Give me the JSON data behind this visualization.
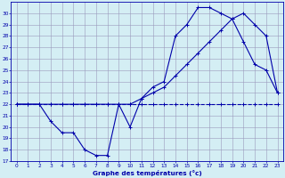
{
  "title": "Graphe des températures (°c)",
  "bg_color": "#d4eef4",
  "grid_color": "#9999bb",
  "line_color": "#0000aa",
  "xlim": [
    -0.5,
    23.5
  ],
  "ylim": [
    17,
    31
  ],
  "xticks": [
    0,
    1,
    2,
    3,
    4,
    5,
    6,
    7,
    8,
    9,
    10,
    11,
    12,
    13,
    14,
    15,
    16,
    17,
    18,
    19,
    20,
    21,
    22,
    23
  ],
  "yticks": [
    17,
    18,
    19,
    20,
    21,
    22,
    23,
    24,
    25,
    26,
    27,
    28,
    29,
    30
  ],
  "curve1_x": [
    0,
    1,
    2,
    3,
    4,
    5,
    6,
    7,
    8,
    9,
    10,
    11,
    12,
    13,
    14,
    15,
    16,
    17,
    18,
    19,
    20,
    21,
    22,
    23
  ],
  "curve1_y": [
    22,
    22,
    22,
    20.5,
    19.5,
    19.5,
    18,
    17.5,
    17.5,
    22,
    20,
    22.5,
    23.5,
    24,
    28,
    29,
    30.5,
    30.5,
    30,
    29.5,
    27.5,
    25.5,
    25,
    23
  ],
  "curve2_x": [
    0,
    2,
    3,
    4,
    5,
    6,
    7,
    8,
    9,
    10,
    11,
    12,
    13,
    14,
    15,
    16,
    17,
    18,
    19,
    20,
    21,
    22,
    23
  ],
  "curve2_y": [
    22,
    22,
    22,
    22,
    22,
    22,
    22,
    22,
    22,
    22,
    22.5,
    23,
    23.5,
    24.5,
    25.5,
    26.5,
    27.5,
    28.5,
    29.5,
    30,
    29,
    28,
    23
  ],
  "curve3_x": [
    0,
    1,
    2,
    3,
    4,
    5,
    6,
    7,
    8,
    9,
    10,
    11,
    12,
    13,
    14,
    15,
    16,
    17,
    18,
    19,
    20,
    21,
    22,
    23
  ],
  "curve3_y": [
    22,
    22,
    22,
    22,
    22,
    22,
    22,
    22,
    22,
    22,
    22,
    22,
    22,
    22,
    22,
    22,
    22,
    22,
    22,
    22,
    22,
    22,
    22,
    22
  ],
  "curve3_style": "--"
}
